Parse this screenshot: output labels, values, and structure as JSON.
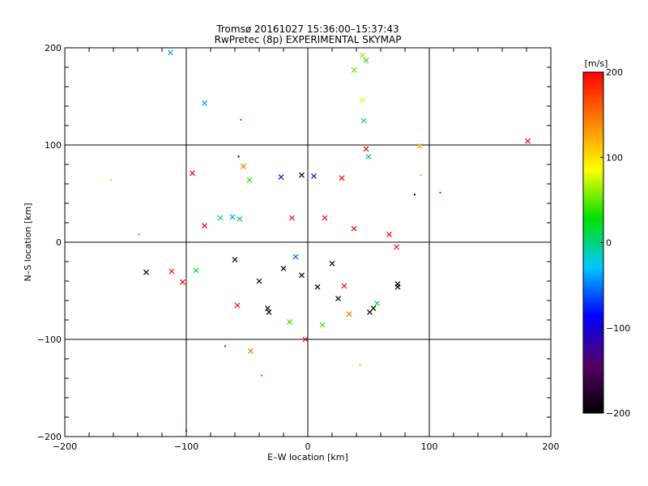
{
  "chart_data": {
    "type": "scatter",
    "title": "Tromsø 20161027 15:36:00–15:37:43",
    "subtitle": "RwPretec (8p) EXPERIMENTAL SKYMAP",
    "xlabel": "E–W location [km]",
    "ylabel": "N–S location [km]",
    "xlim": [
      -200,
      200
    ],
    "ylim": [
      -200,
      200
    ],
    "xticks": [
      "−200",
      "−100",
      "0",
      "100",
      "200"
    ],
    "yticks": [
      "−200",
      "−100",
      "0",
      "100",
      "200"
    ],
    "grid": true,
    "colorbar": {
      "label": "[m/s]",
      "range": [
        -200,
        200
      ],
      "ticks": [
        "200",
        "100",
        "0",
        "−100",
        "−200"
      ],
      "colors": [
        "#000000",
        "#550066",
        "#0000ff",
        "#00c8ff",
        "#00e000",
        "#ffff00",
        "#ff8000",
        "#ff0000"
      ]
    },
    "markers": [
      "dot",
      "x"
    ],
    "points": [
      {
        "x": -113,
        "y": 195,
        "v": -40,
        "m": "x"
      },
      {
        "x": -85,
        "y": 143,
        "v": -40,
        "m": "x"
      },
      {
        "x": -55,
        "y": 126,
        "v": 190,
        "m": "dot"
      },
      {
        "x": 45,
        "y": 192,
        "v": 60,
        "m": "x"
      },
      {
        "x": 48,
        "y": 187,
        "v": 40,
        "m": "x"
      },
      {
        "x": 38,
        "y": 177,
        "v": 50,
        "m": "x"
      },
      {
        "x": 45,
        "y": 146,
        "v": 80,
        "m": "x"
      },
      {
        "x": 46,
        "y": 125,
        "v": 10,
        "m": "x"
      },
      {
        "x": 181,
        "y": 104,
        "v": 200,
        "m": "x"
      },
      {
        "x": 92,
        "y": 99,
        "v": 120,
        "m": "x"
      },
      {
        "x": 48,
        "y": 96,
        "v": 200,
        "m": "x"
      },
      {
        "x": 50,
        "y": 88,
        "v": 0,
        "m": "x"
      },
      {
        "x": -57,
        "y": 88,
        "v": -200,
        "m": "dot"
      },
      {
        "x": -95,
        "y": 71,
        "v": 200,
        "m": "x"
      },
      {
        "x": -53,
        "y": 78,
        "v": 150,
        "m": "x"
      },
      {
        "x": -48,
        "y": 64,
        "v": 40,
        "m": "x"
      },
      {
        "x": -162,
        "y": 64,
        "v": 110,
        "m": "dot"
      },
      {
        "x": -139,
        "y": 8,
        "v": 150,
        "m": "dot"
      },
      {
        "x": -133,
        "y": -31,
        "v": -200,
        "m": "x"
      },
      {
        "x": -112,
        "y": -30,
        "v": 200,
        "m": "x"
      },
      {
        "x": -103,
        "y": -41,
        "v": 200,
        "m": "x"
      },
      {
        "x": -92,
        "y": -29,
        "v": 20,
        "m": "x"
      },
      {
        "x": -100,
        "y": -194,
        "v": 200,
        "m": "dot"
      },
      {
        "x": -58,
        "y": -65,
        "v": 200,
        "m": "x"
      },
      {
        "x": -33,
        "y": -68,
        "v": -200,
        "m": "x"
      },
      {
        "x": -32,
        "y": -72,
        "v": -200,
        "m": "x"
      },
      {
        "x": -47,
        "y": -112,
        "v": 150,
        "m": "x"
      },
      {
        "x": -68,
        "y": -107,
        "v": 200,
        "m": "dot"
      },
      {
        "x": -38,
        "y": -137,
        "v": 170,
        "m": "dot"
      },
      {
        "x": 74,
        "y": -43,
        "v": -200,
        "m": "x"
      },
      {
        "x": 74,
        "y": -46,
        "v": -200,
        "m": "x"
      },
      {
        "x": 57,
        "y": -63,
        "v": 20,
        "m": "x"
      },
      {
        "x": 54,
        "y": -68,
        "v": -200,
        "m": "x"
      },
      {
        "x": 51,
        "y": -72,
        "v": -200,
        "m": "x"
      },
      {
        "x": 34,
        "y": -74,
        "v": 150,
        "m": "x"
      },
      {
        "x": 67,
        "y": 8,
        "v": 200,
        "m": "x"
      },
      {
        "x": 73,
        "y": -5,
        "v": 200,
        "m": "x"
      },
      {
        "x": 88,
        "y": 49,
        "v": -200,
        "m": "dot"
      },
      {
        "x": 93,
        "y": 69,
        "v": 120,
        "m": "dot"
      },
      {
        "x": 109,
        "y": 51,
        "v": 200,
        "m": "dot"
      },
      {
        "x": -2,
        "y": -100,
        "v": 200,
        "m": "x"
      },
      {
        "x": 12,
        "y": -85,
        "v": 40,
        "m": "x"
      },
      {
        "x": -15,
        "y": -82,
        "v": 40,
        "m": "x"
      },
      {
        "x": 43,
        "y": -126,
        "v": 120,
        "m": "dot"
      },
      {
        "x": -5,
        "y": 69,
        "v": -200,
        "m": "x"
      },
      {
        "x": 5,
        "y": 68,
        "v": -80,
        "m": "x"
      },
      {
        "x": -22,
        "y": 67,
        "v": -80,
        "m": "x"
      },
      {
        "x": 28,
        "y": 66,
        "v": 200,
        "m": "x"
      },
      {
        "x": -72,
        "y": 25,
        "v": 10,
        "m": "x"
      },
      {
        "x": -62,
        "y": 26,
        "v": -40,
        "m": "x"
      },
      {
        "x": -56,
        "y": 24,
        "v": 10,
        "m": "x"
      },
      {
        "x": -85,
        "y": 17,
        "v": 200,
        "m": "x"
      },
      {
        "x": -13,
        "y": 25,
        "v": 200,
        "m": "x"
      },
      {
        "x": 14,
        "y": 25,
        "v": 200,
        "m": "x"
      },
      {
        "x": 38,
        "y": 14,
        "v": 200,
        "m": "x"
      },
      {
        "x": -20,
        "y": -27,
        "v": -200,
        "m": "x"
      },
      {
        "x": -5,
        "y": -34,
        "v": -200,
        "m": "x"
      },
      {
        "x": 8,
        "y": -46,
        "v": -200,
        "m": "x"
      },
      {
        "x": 20,
        "y": -22,
        "v": -200,
        "m": "x"
      },
      {
        "x": -60,
        "y": -18,
        "v": -200,
        "m": "x"
      },
      {
        "x": -40,
        "y": -40,
        "v": -200,
        "m": "x"
      },
      {
        "x": 25,
        "y": -58,
        "v": -200,
        "m": "x"
      },
      {
        "x": -10,
        "y": -15,
        "v": -60,
        "m": "x"
      },
      {
        "x": 30,
        "y": -45,
        "v": 200,
        "m": "x"
      }
    ]
  }
}
